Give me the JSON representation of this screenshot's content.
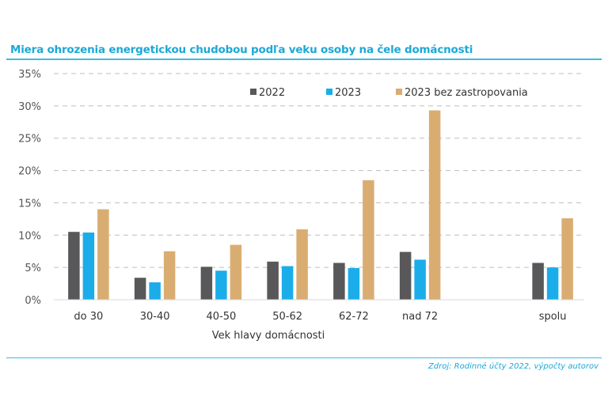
{
  "header": {
    "title": "Miera ohrozenia energetickou chudobou podľa veku osoby na čele domácnosti"
  },
  "footer": {
    "source": "Zdroj: Rodinné účty 2022, výpočty autorov"
  },
  "chart_data": {
    "type": "bar",
    "title": "Miera ohrozenia energetickou chudobou podľa veku osoby na čele domácnosti",
    "xlabel": "Vek hlavy domácnosti",
    "ylabel": "",
    "ylim": [
      0,
      35
    ],
    "yticks": [
      "0%",
      "5%",
      "10%",
      "15%",
      "20%",
      "25%",
      "30%",
      "35%"
    ],
    "grid": true,
    "legend_position": "top-right",
    "categories": [
      "do 30",
      "30-40",
      "40-50",
      "50-62",
      "62-72",
      "nad 72",
      "",
      "spolu"
    ],
    "series": [
      {
        "name": "2022",
        "color": "#58585a",
        "values": [
          10.5,
          3.4,
          5.1,
          5.9,
          5.7,
          7.4,
          null,
          5.7
        ]
      },
      {
        "name": "2023",
        "color": "#1badea",
        "values": [
          10.4,
          2.7,
          4.5,
          5.2,
          4.9,
          6.2,
          null,
          5.0
        ]
      },
      {
        "name": "2023 bez zastropovania",
        "color": "#d9ad72",
        "values": [
          14.0,
          7.5,
          8.5,
          10.9,
          18.5,
          29.3,
          null,
          12.6
        ]
      }
    ]
  }
}
